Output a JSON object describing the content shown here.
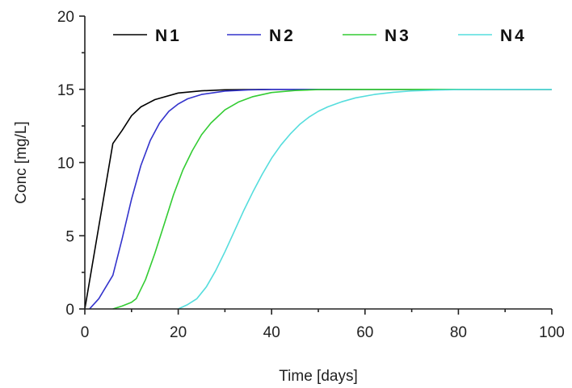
{
  "chart_data": {
    "type": "line",
    "title": "",
    "xlabel": "Time [days]",
    "ylabel": "Conc [mg/L]",
    "xlim": [
      0,
      100
    ],
    "ylim": [
      0,
      20
    ],
    "xticks": [
      0,
      20,
      40,
      60,
      80,
      100
    ],
    "yticks": [
      0,
      5,
      10,
      15,
      20
    ],
    "grid": false,
    "legend": "top",
    "series": [
      {
        "name": "N1",
        "color": "#000000",
        "points": [
          [
            0,
            0
          ],
          [
            6,
            11.3
          ],
          [
            8,
            12.2
          ],
          [
            10,
            13.2
          ],
          [
            12,
            13.8
          ],
          [
            15,
            14.3
          ],
          [
            20,
            14.75
          ],
          [
            25,
            14.9
          ],
          [
            30,
            14.97
          ],
          [
            40,
            15
          ],
          [
            60,
            15
          ],
          [
            100,
            15
          ]
        ]
      },
      {
        "name": "N2",
        "color": "#3333cc",
        "points": [
          [
            1,
            0
          ],
          [
            3,
            0.7
          ],
          [
            6,
            2.3
          ],
          [
            8,
            4.8
          ],
          [
            10,
            7.5
          ],
          [
            12,
            9.8
          ],
          [
            14,
            11.5
          ],
          [
            16,
            12.7
          ],
          [
            18,
            13.5
          ],
          [
            20,
            14.0
          ],
          [
            22,
            14.35
          ],
          [
            25,
            14.65
          ],
          [
            30,
            14.88
          ],
          [
            35,
            14.96
          ],
          [
            40,
            15
          ],
          [
            60,
            15
          ],
          [
            100,
            15
          ]
        ]
      },
      {
        "name": "N3",
        "color": "#33cc33",
        "points": [
          [
            6,
            0
          ],
          [
            8,
            0.2
          ],
          [
            10,
            0.45
          ],
          [
            11,
            0.7
          ],
          [
            13,
            2.0
          ],
          [
            15,
            3.8
          ],
          [
            17,
            5.8
          ],
          [
            19,
            7.8
          ],
          [
            21,
            9.5
          ],
          [
            23,
            10.8
          ],
          [
            25,
            11.9
          ],
          [
            27,
            12.7
          ],
          [
            30,
            13.6
          ],
          [
            33,
            14.15
          ],
          [
            36,
            14.5
          ],
          [
            40,
            14.78
          ],
          [
            45,
            14.92
          ],
          [
            50,
            14.98
          ],
          [
            60,
            15
          ],
          [
            100,
            15
          ]
        ]
      },
      {
        "name": "N4",
        "color": "#55dddd",
        "points": [
          [
            20,
            0
          ],
          [
            22,
            0.3
          ],
          [
            24,
            0.7
          ],
          [
            26,
            1.5
          ],
          [
            28,
            2.6
          ],
          [
            30,
            3.9
          ],
          [
            32,
            5.3
          ],
          [
            34,
            6.7
          ],
          [
            36,
            8.0
          ],
          [
            38,
            9.2
          ],
          [
            40,
            10.3
          ],
          [
            42,
            11.2
          ],
          [
            44,
            11.95
          ],
          [
            46,
            12.6
          ],
          [
            48,
            13.1
          ],
          [
            50,
            13.5
          ],
          [
            52,
            13.8
          ],
          [
            55,
            14.15
          ],
          [
            58,
            14.42
          ],
          [
            62,
            14.65
          ],
          [
            66,
            14.8
          ],
          [
            70,
            14.89
          ],
          [
            75,
            14.95
          ],
          [
            80,
            14.98
          ],
          [
            90,
            15
          ],
          [
            100,
            15
          ]
        ]
      }
    ]
  }
}
